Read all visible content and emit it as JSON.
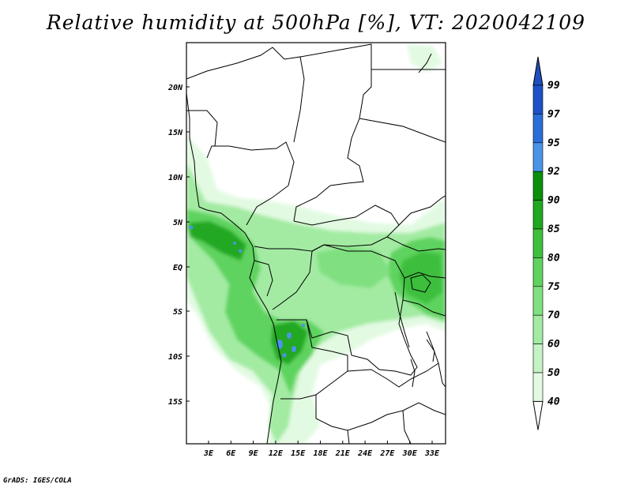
{
  "title": "Relative humidity at 500hPa [%], VT: 2020042109",
  "credit": "GrADS: IGES/COLA",
  "map": {
    "variable": "Relative humidity",
    "level": "500hPa",
    "units": "%",
    "valid_time": "2020042109",
    "lat_labels": [
      "20N",
      "15N",
      "10N",
      "5N",
      "EQ",
      "5S",
      "10S",
      "15S"
    ],
    "lon_labels": [
      "3E",
      "6E",
      "9E",
      "12E",
      "15E",
      "18E",
      "21E",
      "24E",
      "27E",
      "30E",
      "33E"
    ]
  },
  "colorbar": {
    "levels": [
      "99",
      "97",
      "95",
      "92",
      "90",
      "85",
      "80",
      "75",
      "70",
      "60",
      "50",
      "40"
    ],
    "colors": [
      "#1e50c8",
      "#2a6fd8",
      "#4a94e8",
      "#0a8f0a",
      "#20a820",
      "#3ebf3e",
      "#5fd35f",
      "#80e080",
      "#a3eba3",
      "#c4f2c4",
      "#e2fae2",
      "#ffffff"
    ],
    "top_color": "#1e4fbf"
  },
  "colors": {
    "background": "#ffffff",
    "border": "#000000",
    "very_wet": "#20a820",
    "wet": "#5fd35f",
    "moist": "#a3eba3",
    "light": "#e2fae2",
    "saturated": "#4a94e8"
  }
}
